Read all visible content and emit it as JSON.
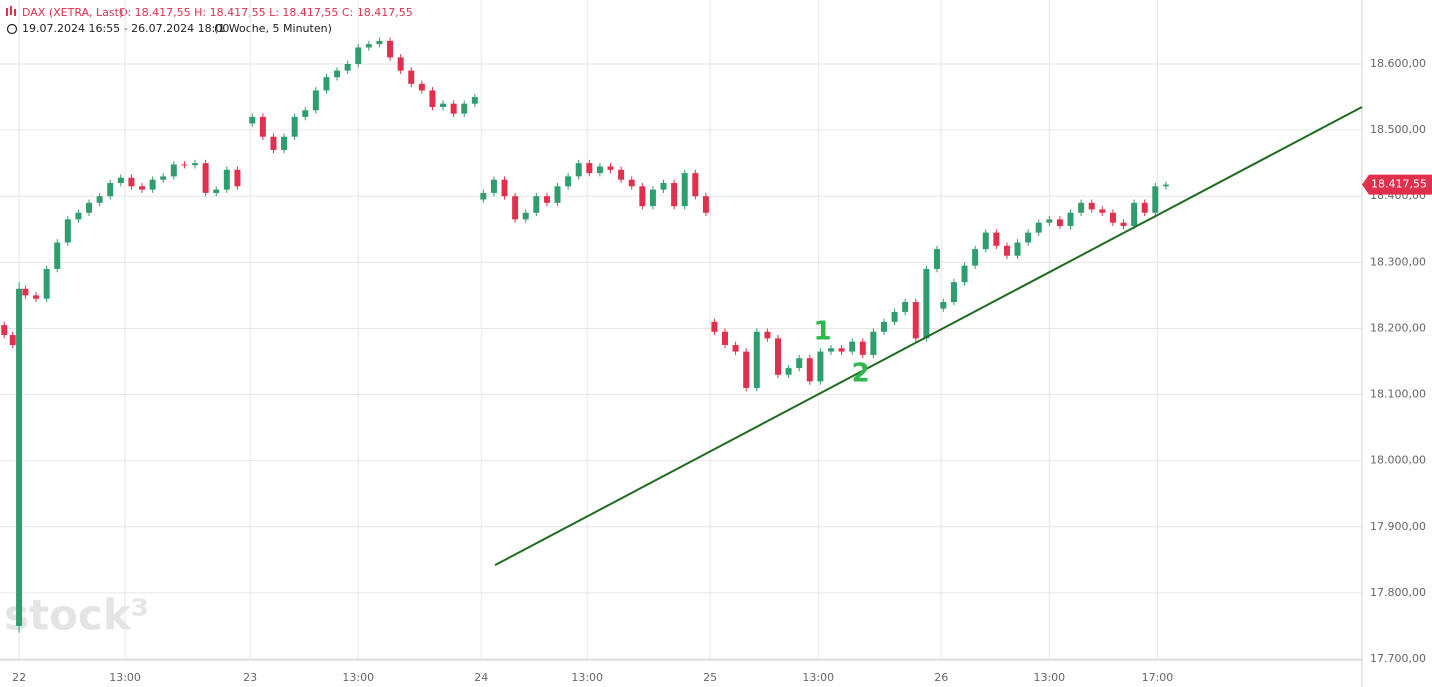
{
  "chart_data": {
    "type": "candlestick",
    "title": "DAX (XETRA, Last)",
    "subtitle": "O: 18.417,55   H: 18.417,55   L: 18.417,55   C: 18.417,55",
    "date_range": "19.07.2024 16:55 - 26.07.2024 18:00",
    "interval": "(1 Woche, 5 Minuten)",
    "watermark": "stock³",
    "grid": true,
    "up_color": "#2e9e6e",
    "down_color": "#e0304e",
    "xlim": [
      -0.9,
      63.35
    ],
    "xticks": [
      {
        "value": 0,
        "label": "22"
      },
      {
        "value": 5.0,
        "label": "13:00"
      },
      {
        "value": 10.9,
        "label": "23"
      },
      {
        "value": 16.0,
        "label": "13:00"
      },
      {
        "value": 21.8,
        "label": "24"
      },
      {
        "value": 26.8,
        "label": "13:00"
      },
      {
        "value": 32.6,
        "label": "25"
      },
      {
        "value": 37.7,
        "label": "13:00"
      },
      {
        "value": 43.5,
        "label": "26"
      },
      {
        "value": 48.6,
        "label": "13:00"
      },
      {
        "value": 53.7,
        "label": "17:00"
      }
    ],
    "ylim": [
      17698.5,
      18696.8
    ],
    "yticks": [
      {
        "value": 17700,
        "label": "17.700,00"
      },
      {
        "value": 17800,
        "label": "17.800,00"
      },
      {
        "value": 17900,
        "label": "17.900,00"
      },
      {
        "value": 18000,
        "label": "18.000,00"
      },
      {
        "value": 18100,
        "label": "18.100,00"
      },
      {
        "value": 18200,
        "label": "18.200,00"
      },
      {
        "value": 18300,
        "label": "18.300,00"
      },
      {
        "value": 18400,
        "label": "18.400,00"
      },
      {
        "value": 18500,
        "label": "18.500,00"
      },
      {
        "value": 18600,
        "label": "18.600,00"
      }
    ],
    "series": [
      {
        "x": [
          -0.7,
          -0.3,
          0,
          0.3,
          0.8,
          1.3,
          1.8,
          2.3,
          2.8,
          3.3,
          3.8,
          4.3,
          4.8,
          5.3,
          5.8,
          6.3,
          6.8,
          7.3,
          7.8,
          8.3,
          8.8,
          9.3,
          9.8,
          10.3,
          11,
          11.5,
          12,
          12.5,
          13,
          13.5,
          14,
          14.5,
          15,
          15.5,
          16,
          16.5,
          17,
          17.5,
          18,
          18.5,
          19,
          19.5,
          20,
          20.5,
          21,
          21.5,
          21.9,
          22.4,
          22.9,
          23.4,
          23.9,
          24.4,
          24.9,
          25.4,
          25.9,
          26.4,
          26.9,
          27.4,
          27.9,
          28.4,
          28.9,
          29.4,
          29.9,
          30.4,
          30.9,
          31.4,
          31.9,
          32.4,
          32.8,
          33.3,
          33.8,
          34.3,
          34.8,
          35.3,
          35.8,
          36.3,
          36.8,
          37.3,
          37.8,
          38.3,
          38.8,
          39.3,
          39.8,
          40.3,
          40.8,
          41.3,
          41.8,
          42.3,
          42.8,
          43.3,
          43.6,
          44.1,
          44.6,
          45.1,
          45.6,
          46.1,
          46.6,
          47.1,
          47.6,
          48.1,
          48.6,
          49.1,
          49.6,
          50.1,
          50.6,
          51.1,
          51.6,
          52.1,
          52.6,
          53.1,
          53.6,
          54.1
        ],
        "open": [
          18205,
          18190,
          17750,
          18260,
          18250,
          18245,
          18290,
          18330,
          18365,
          18375,
          18390,
          18400,
          18420,
          18428,
          18415,
          18410,
          18425,
          18430,
          18448,
          18447,
          18450,
          18405,
          18410,
          18440,
          18510,
          18520,
          18490,
          18470,
          18490,
          18520,
          18530,
          18560,
          18580,
          18590,
          18600,
          18625,
          18630,
          18635,
          18610,
          18590,
          18570,
          18560,
          18535,
          18540,
          18525,
          18540,
          18395,
          18405,
          18425,
          18400,
          18365,
          18375,
          18400,
          18390,
          18415,
          18430,
          18450,
          18435,
          18445,
          18440,
          18425,
          18415,
          18385,
          18410,
          18420,
          18385,
          18435,
          18400,
          18210,
          18195,
          18175,
          18165,
          18110,
          18195,
          18185,
          18130,
          18140,
          18155,
          18120,
          18165,
          18170,
          18165,
          18180,
          18160,
          18195,
          18210,
          18225,
          18240,
          18185,
          18290,
          18230,
          18240,
          18270,
          18295,
          18320,
          18345,
          18325,
          18310,
          18330,
          18345,
          18360,
          18365,
          18355,
          18375,
          18390,
          18380,
          18375,
          18360,
          18355,
          18390,
          18375,
          18415
        ],
        "high": [
          18210,
          18195,
          18270,
          18265,
          18255,
          18295,
          18335,
          18370,
          18380,
          18395,
          18405,
          18425,
          18433,
          18433,
          18420,
          18430,
          18435,
          18453,
          18453,
          18455,
          18455,
          18415,
          18445,
          18445,
          18525,
          18525,
          18495,
          18495,
          18525,
          18535,
          18565,
          18585,
          18595,
          18605,
          18630,
          18635,
          18640,
          18640,
          18615,
          18595,
          18575,
          18565,
          18545,
          18545,
          18545,
          18555,
          18410,
          18430,
          18430,
          18405,
          18380,
          18405,
          18405,
          18420,
          18435,
          18455,
          18455,
          18450,
          18450,
          18445,
          18430,
          18420,
          18415,
          18425,
          18425,
          18440,
          18440,
          18405,
          18215,
          18200,
          18180,
          18170,
          18200,
          18200,
          18190,
          18145,
          18160,
          18160,
          18170,
          18175,
          18175,
          18185,
          18185,
          18200,
          18215,
          18230,
          18245,
          18245,
          18295,
          18325,
          18245,
          18275,
          18300,
          18325,
          18350,
          18350,
          18330,
          18335,
          18350,
          18365,
          18370,
          18370,
          18380,
          18395,
          18395,
          18385,
          18380,
          18365,
          18395,
          18395,
          18420,
          18422
        ],
        "low": [
          18185,
          18170,
          17740,
          18245,
          18240,
          18240,
          18285,
          18325,
          18360,
          18370,
          18385,
          18395,
          18415,
          18410,
          18405,
          18405,
          18420,
          18425,
          18442,
          18442,
          18400,
          18400,
          18405,
          18410,
          18505,
          18485,
          18465,
          18465,
          18485,
          18515,
          18525,
          18555,
          18575,
          18585,
          18595,
          18620,
          18625,
          18605,
          18585,
          18565,
          18555,
          18530,
          18530,
          18520,
          18520,
          18535,
          18390,
          18400,
          18395,
          18360,
          18360,
          18370,
          18385,
          18385,
          18410,
          18425,
          18430,
          18430,
          18435,
          18420,
          18410,
          18380,
          18380,
          18405,
          18380,
          18380,
          18395,
          18370,
          18190,
          18170,
          18160,
          18105,
          18105,
          18180,
          18125,
          18125,
          18135,
          18115,
          18115,
          18160,
          18160,
          18160,
          18155,
          18155,
          18190,
          18205,
          18220,
          18180,
          18180,
          18285,
          18225,
          18235,
          18265,
          18290,
          18315,
          18320,
          18305,
          18305,
          18325,
          18340,
          18355,
          18350,
          18350,
          18370,
          18375,
          18370,
          18355,
          18350,
          18350,
          18370,
          18370,
          18410
        ],
        "close": [
          18190,
          18175,
          18260,
          18250,
          18245,
          18290,
          18330,
          18365,
          18375,
          18390,
          18400,
          18420,
          18428,
          18415,
          18410,
          18425,
          18430,
          18448,
          18447,
          18450,
          18405,
          18410,
          18440,
          18415,
          18520,
          18490,
          18470,
          18490,
          18520,
          18530,
          18560,
          18580,
          18590,
          18600,
          18625,
          18630,
          18635,
          18610,
          18590,
          18570,
          18560,
          18535,
          18540,
          18525,
          18540,
          18550,
          18405,
          18425,
          18400,
          18365,
          18375,
          18400,
          18390,
          18415,
          18430,
          18450,
          18435,
          18445,
          18440,
          18425,
          18415,
          18385,
          18410,
          18420,
          18385,
          18435,
          18400,
          18375,
          18195,
          18175,
          18165,
          18110,
          18195,
          18185,
          18130,
          18140,
          18155,
          18120,
          18165,
          18170,
          18165,
          18180,
          18160,
          18195,
          18210,
          18225,
          18240,
          18185,
          18290,
          18320,
          18240,
          18270,
          18295,
          18320,
          18345,
          18325,
          18310,
          18330,
          18345,
          18360,
          18365,
          18355,
          18375,
          18390,
          18380,
          18375,
          18360,
          18355,
          18390,
          18375,
          18415,
          18417.55
        ]
      }
    ],
    "trendline": {
      "color": "#1f6b1f",
      "x": [
        22.45,
        63.35
      ],
      "y": [
        17842,
        18535
      ]
    },
    "annotations": [
      {
        "text": "1",
        "x": 37.9,
        "y": 18195,
        "color": "#2db84b"
      },
      {
        "text": "2",
        "x": 39.7,
        "y": 18131,
        "color": "#2db84b"
      }
    ],
    "last_price": {
      "value": 18417.55,
      "label": "18.417,55",
      "color": "#e0304e"
    }
  }
}
